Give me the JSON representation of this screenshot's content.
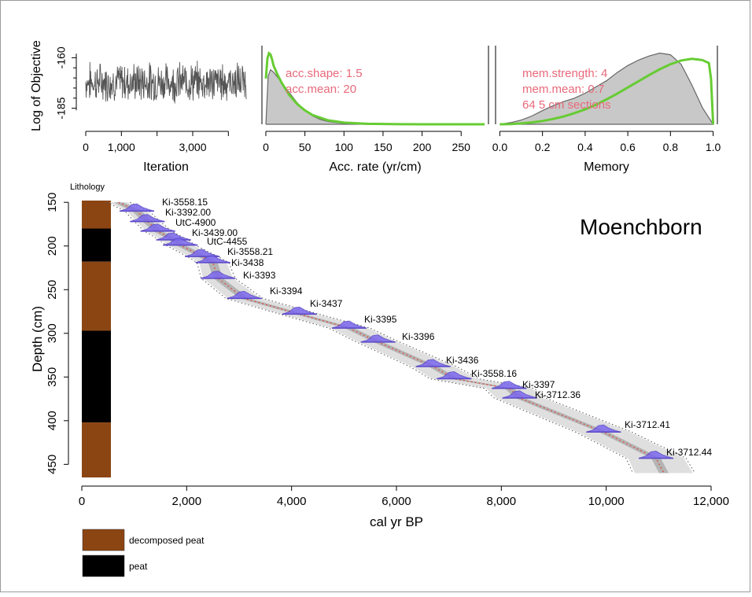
{
  "chart_data": [
    {
      "type": "line",
      "xlabel": "Iteration",
      "ylabel": "Log of Objective",
      "x_ticks": [
        "0",
        "1,000",
        "3,000"
      ],
      "x_tick_values": [
        0,
        1000,
        3000
      ],
      "y_ticks": [
        "-160",
        "-185"
      ],
      "y_tick_values": [
        -160,
        -185
      ],
      "xlim": [
        0,
        4500
      ],
      "ylim": [
        -191,
        -154
      ],
      "trace_mean": -172,
      "trace_spread": 8,
      "trace_color": "#555555"
    },
    {
      "type": "area",
      "xlabel": "Acc. rate (yr/cm)",
      "x_ticks": [
        "0",
        "50",
        "100",
        "150",
        "200",
        "250"
      ],
      "x_tick_values": [
        0,
        50,
        100,
        150,
        200,
        250
      ],
      "xlim": [
        -5,
        285
      ],
      "annotations": [
        "acc.shape:  1.5",
        "acc.mean:  20"
      ],
      "series": [
        {
          "x": [
            0,
            3,
            6,
            10,
            15,
            20,
            25,
            30,
            35,
            40,
            50,
            60,
            70,
            80,
            100,
            120,
            150,
            200,
            250,
            280
          ],
          "y": [
            0.0,
            0.038,
            0.043,
            0.041,
            0.037,
            0.033,
            0.029,
            0.025,
            0.021,
            0.017,
            0.011,
            0.0065,
            0.0038,
            0.0022,
            0.0007,
            0.0002,
            0.0,
            0.0,
            0.0,
            0.0
          ]
        },
        {
          "x": [
            0,
            2,
            4,
            6,
            8,
            10,
            15,
            20,
            30,
            40,
            50,
            60,
            80,
            100,
            130,
            160,
            200,
            250,
            280
          ],
          "y": [
            0.036,
            0.052,
            0.056,
            0.055,
            0.051,
            0.046,
            0.039,
            0.033,
            0.023,
            0.016,
            0.011,
            0.0072,
            0.0031,
            0.0013,
            0.0004,
            0.0001,
            0.0,
            0.0,
            0.0
          ]
        }
      ],
      "ylim": [
        0,
        0.062
      ]
    },
    {
      "type": "area",
      "xlabel": "Memory",
      "x_ticks": [
        "0.0",
        "0.2",
        "0.4",
        "0.6",
        "0.8",
        "1.0"
      ],
      "x_tick_values": [
        0,
        0.2,
        0.4,
        0.6,
        0.8,
        1.0
      ],
      "xlim": [
        -0.02,
        1.02
      ],
      "annotations": [
        "mem.strength: 4",
        "mem.mean: 0.7",
        "64 5 cm sections"
      ],
      "series": [
        {
          "x": [
            0.0,
            0.05,
            0.1,
            0.15,
            0.2,
            0.25,
            0.3,
            0.35,
            0.4,
            0.45,
            0.5,
            0.55,
            0.6,
            0.65,
            0.7,
            0.75,
            0.8,
            0.85,
            0.9,
            0.95,
            1.0
          ],
          "y": [
            0.0,
            0.04,
            0.1,
            0.2,
            0.33,
            0.45,
            0.55,
            0.63,
            0.75,
            0.9,
            1.05,
            1.25,
            1.42,
            1.55,
            1.65,
            1.72,
            1.68,
            1.45,
            0.95,
            0.4,
            0.0
          ]
        },
        {
          "x": [
            0.0,
            0.05,
            0.1,
            0.15,
            0.2,
            0.25,
            0.3,
            0.35,
            0.4,
            0.45,
            0.5,
            0.55,
            0.6,
            0.65,
            0.7,
            0.75,
            0.8,
            0.85,
            0.9,
            0.95,
            0.98,
            0.99,
            1.0
          ],
          "y": [
            0.0,
            0.005,
            0.02,
            0.045,
            0.08,
            0.13,
            0.19,
            0.27,
            0.36,
            0.47,
            0.6,
            0.74,
            0.89,
            1.04,
            1.19,
            1.33,
            1.45,
            1.54,
            1.58,
            1.55,
            1.48,
            1.1,
            0.0
          ]
        }
      ],
      "ylim": [
        0,
        1.9
      ]
    },
    {
      "type": "line",
      "title": "Moenchborn",
      "xlabel": "cal yr BP",
      "ylabel": "Depth (cm)",
      "x_ticks": [
        "0",
        "2,000",
        "4,000",
        "6,000",
        "8,000",
        "10,000",
        "12,000"
      ],
      "x_tick_values": [
        0,
        2000,
        4000,
        6000,
        8000,
        10000,
        12000
      ],
      "y_ticks": [
        "150",
        "200",
        "250",
        "300",
        "350",
        "400",
        "450"
      ],
      "y_tick_values": [
        150,
        200,
        250,
        300,
        350,
        400,
        450
      ],
      "xlim": [
        0,
        12000
      ],
      "ylim": [
        148,
        465
      ],
      "lithology_label": "Lithology",
      "lithology": [
        {
          "from": 148,
          "to": 180,
          "type": "decomposed peat"
        },
        {
          "from": 180,
          "to": 218,
          "type": "peat"
        },
        {
          "from": 218,
          "to": 297,
          "type": "decomposed peat"
        },
        {
          "from": 297,
          "to": 402,
          "type": "peat"
        },
        {
          "from": 402,
          "to": 465,
          "type": "decomposed peat"
        }
      ],
      "lithology_colors": {
        "decomposed peat": "#8b4513",
        "peat": "#000000"
      },
      "legend": [
        "decomposed peat",
        "peat"
      ],
      "dates": [
        {
          "label": "Ki-3558.15",
          "age": 1050,
          "depth": 160
        },
        {
          "label": "Ki-3392.00",
          "age": 1250,
          "depth": 172
        },
        {
          "label": "UtC-4900",
          "age": 1450,
          "depth": 183
        },
        {
          "label": "Ki-3439.00",
          "age": 1750,
          "depth": 193
        },
        {
          "label": "UtC-4455",
          "age": 1880,
          "depth": 199
        },
        {
          "label": "Ki-3558.21",
          "age": 2300,
          "depth": 212
        },
        {
          "label": "Ki-3438",
          "age": 2500,
          "depth": 219
        },
        {
          "label": "Ki-3393",
          "age": 2600,
          "depth": 237
        },
        {
          "label": "Ki-3394",
          "age": 3100,
          "depth": 260
        },
        {
          "label": "Ki-3437",
          "age": 4150,
          "depth": 278
        },
        {
          "label": "Ki-3395",
          "age": 5100,
          "depth": 294
        },
        {
          "label": "Ki-3396",
          "age": 5650,
          "depth": 310
        },
        {
          "label": "Ki-3436",
          "age": 6700,
          "depth": 338
        },
        {
          "label": "Ki-3558.16",
          "age": 7100,
          "depth": 352
        },
        {
          "label": "Ki-3397",
          "age": 8150,
          "depth": 363
        },
        {
          "label": "Ki-3712.36",
          "age": 8350,
          "depth": 374
        },
        {
          "label": "Ki-3712.41",
          "age": 9950,
          "depth": 413
        },
        {
          "label": "Ki-3712.44",
          "age": 10950,
          "depth": 443
        }
      ],
      "age_model": {
        "depth": [
          150,
          160,
          172,
          183,
          193,
          199,
          212,
          219,
          237,
          260,
          278,
          294,
          310,
          338,
          352,
          363,
          374,
          413,
          443,
          460
        ],
        "age": [
          700,
          1050,
          1250,
          1450,
          1750,
          1880,
          2300,
          2500,
          2600,
          3100,
          4150,
          5100,
          5650,
          6700,
          7100,
          8150,
          8350,
          9950,
          10950,
          11100
        ]
      }
    }
  ],
  "colors": {
    "trace": "#555555",
    "prior": "#66cc33",
    "posterior_fill": "#c8c8c8",
    "posterior_line": "#666666",
    "annotation": "#e8697a",
    "date_fill": "#7b68ee",
    "mean_line": "#e0483a"
  }
}
